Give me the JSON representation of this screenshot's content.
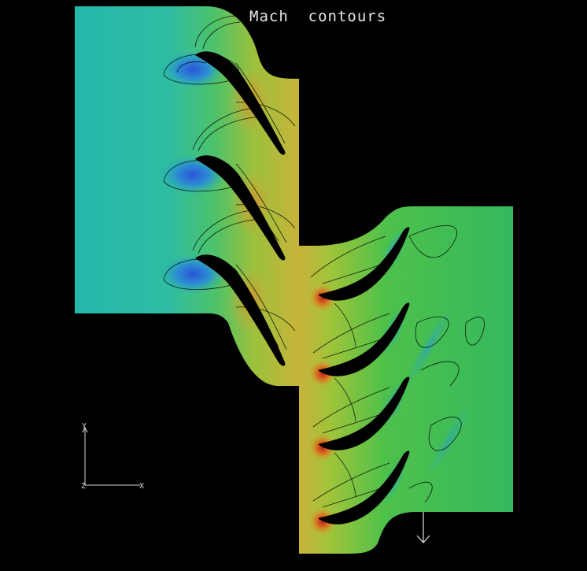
{
  "title": "Mach  contours",
  "axes": {
    "y_label": "Y",
    "x_label": "X",
    "z_label": "Z"
  },
  "colors": {
    "background": "#000000",
    "inlet_field": "#27b8a9",
    "low_mach": "#2d7ad8",
    "mid_mach": "#3fbf5a",
    "high_mach": "#c94a16",
    "contour_line": "#000000",
    "blade": "#000000",
    "text": "#e8e8e8"
  },
  "icons": {
    "flow_direction": "down-arrow-icon"
  }
}
